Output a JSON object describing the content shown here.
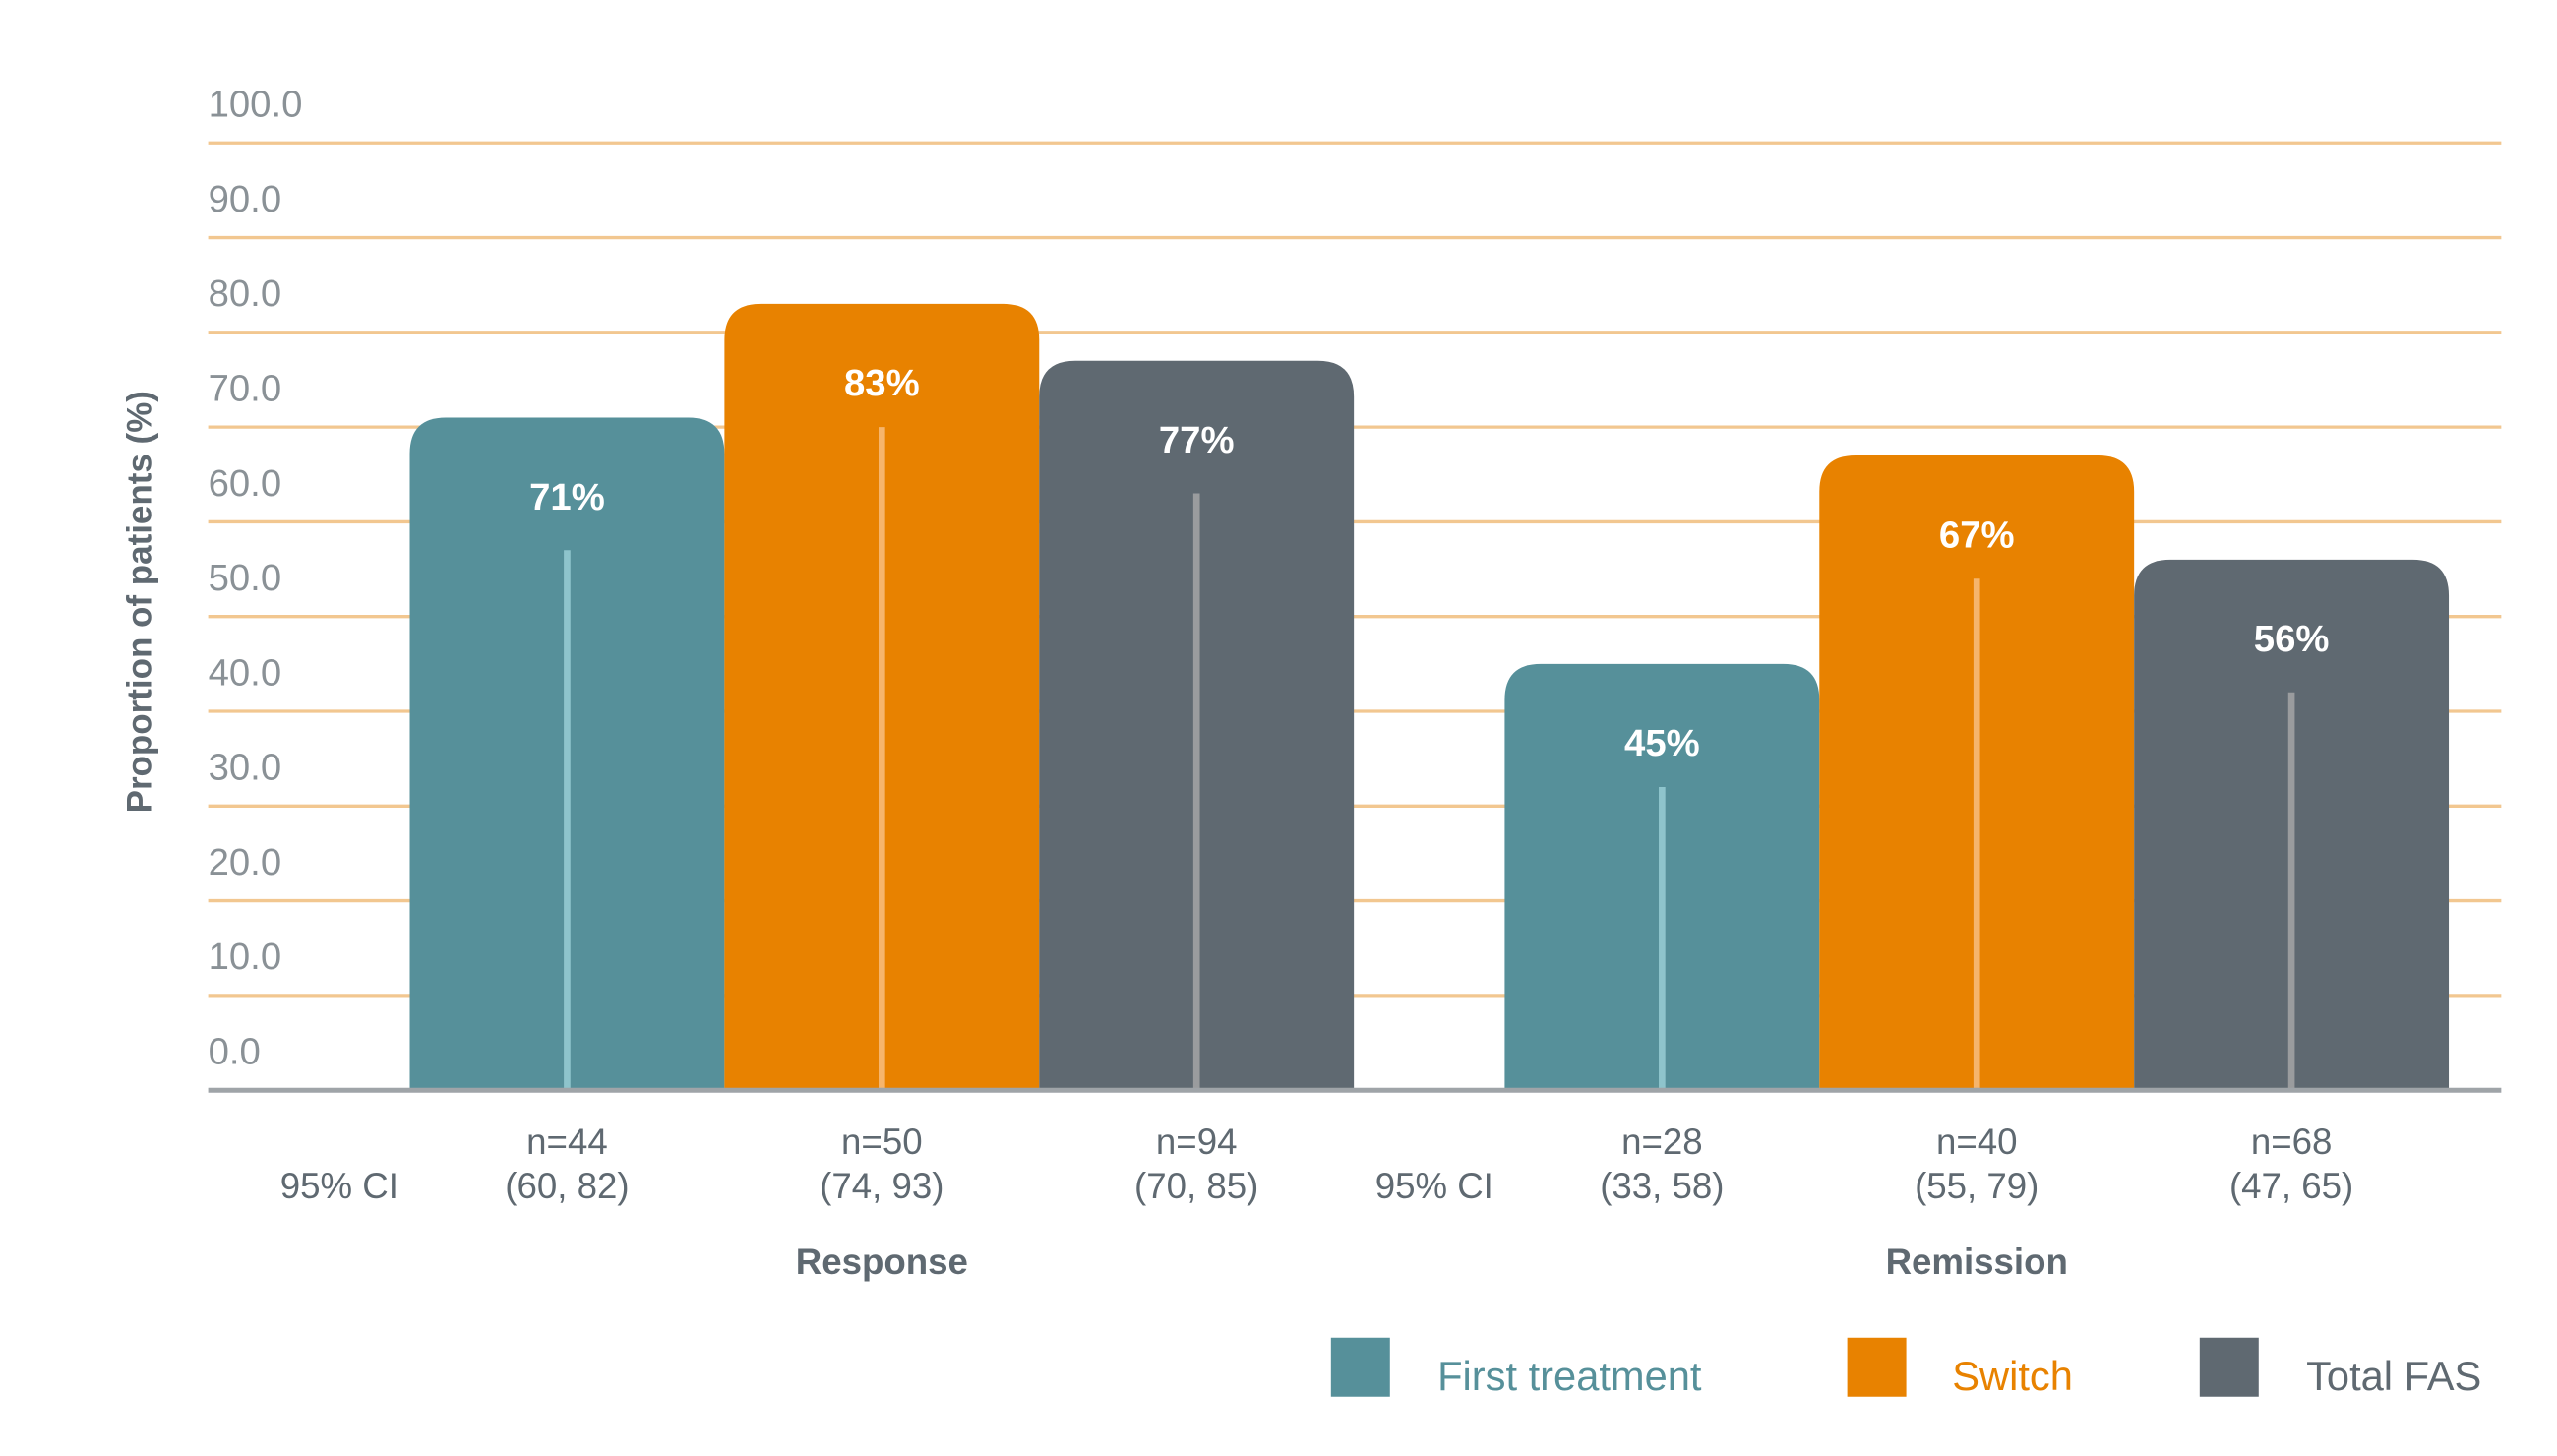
{
  "chart_data": {
    "type": "bar",
    "title": "",
    "ylabel": "Proportion of patients (%)",
    "xlabel": "",
    "ylim": [
      0,
      100
    ],
    "yticks": [
      "0.0",
      "10.0",
      "20.0",
      "30.0",
      "40.0",
      "50.0",
      "60.0",
      "70.0",
      "80.0",
      "90.0",
      "100.0"
    ],
    "grid": true,
    "legend_position": "bottom-right",
    "ci_label": "95% CI",
    "groups": [
      {
        "name": "Response",
        "ns": [
          "n=44",
          "n=50",
          "n=94"
        ],
        "cis": [
          "(60, 82)",
          "(74, 93)",
          "(70, 85)"
        ]
      },
      {
        "name": "Remission",
        "ns": [
          "n=28",
          "n=40",
          "n=68"
        ],
        "cis": [
          "(33, 58)",
          "(55, 79)",
          "(47, 65)"
        ]
      }
    ],
    "categories": [
      "Response",
      "Remission"
    ],
    "series": [
      {
        "name": "First treatment",
        "color": "#56909a",
        "line_color": "#8ec4cc",
        "values": [
          71,
          45
        ],
        "labels": [
          "71%",
          "45%"
        ],
        "inner_line": [
          57,
          32
        ]
      },
      {
        "name": "Switch",
        "color": "#e88200",
        "line_color": "#f6b56c",
        "values": [
          83,
          67
        ],
        "labels": [
          "83%",
          "67%"
        ],
        "inner_line": [
          70,
          54
        ]
      },
      {
        "name": "Total FAS",
        "color": "#5f6971",
        "line_color": "#9a9c9e",
        "values": [
          77,
          56
        ],
        "labels": [
          "77%",
          "56%"
        ],
        "inner_line": [
          63,
          42
        ]
      }
    ]
  },
  "colors": {
    "grid": "#f2c790",
    "axis": "#9fa4a8"
  }
}
